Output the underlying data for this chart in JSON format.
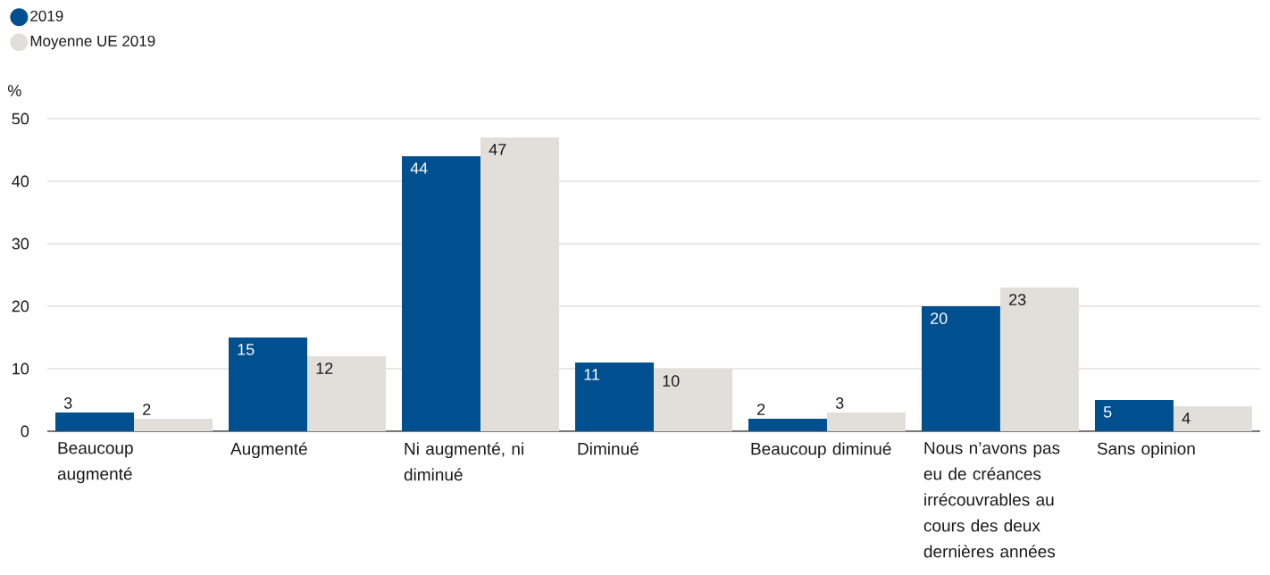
{
  "chart_data": {
    "type": "bar",
    "ylabel": "%",
    "categories": [
      "Beaucoup augmenté",
      "Augmenté",
      "Ni augmenté, ni diminué",
      "Diminué",
      "Beaucoup diminué",
      "Nous n’avons pas eu de créances irrécouvrables au cours des deux dernières années",
      "Sans opinion"
    ],
    "series": [
      {
        "name": "2019",
        "color": "#00508f",
        "values": [
          3,
          15,
          44,
          11,
          2,
          20,
          5
        ]
      },
      {
        "name": "Moyenne UE 2019",
        "color": "#e2dfdb",
        "values": [
          2,
          12,
          47,
          10,
          3,
          23,
          4
        ]
      }
    ],
    "ylim": [
      0,
      50
    ],
    "yticks": [
      0,
      10,
      20,
      30,
      40,
      50
    ],
    "grid": "y",
    "legend": "top left",
    "data_labels": true
  }
}
